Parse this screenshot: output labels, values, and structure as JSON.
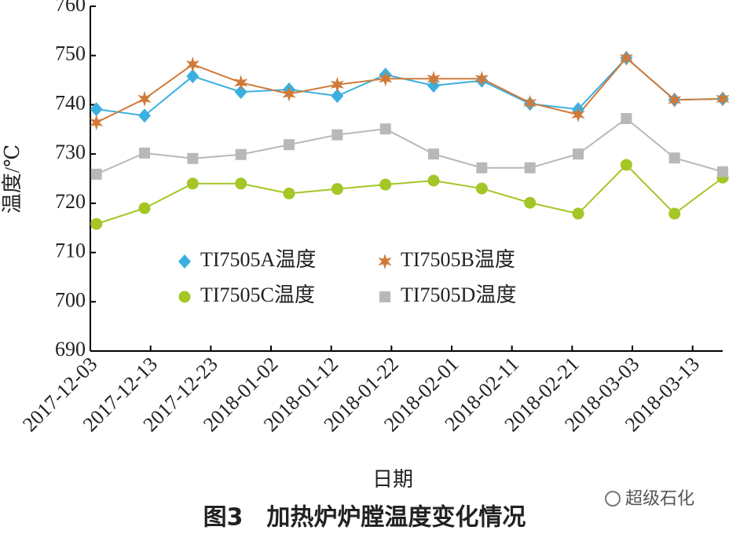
{
  "chart_data": {
    "type": "line",
    "x_label": "日期",
    "y_label": "温度/℃",
    "caption": "图3　加热炉炉膛温度变化情况",
    "watermark": "超级石化",
    "x": [
      "2017-12-04",
      "2017-12-12",
      "2017-12-20",
      "2017-12-28",
      "2018-01-05",
      "2018-01-13",
      "2018-01-21",
      "2018-01-29",
      "2018-02-06",
      "2018-02-14",
      "2018-02-22",
      "2018-03-02",
      "2018-03-10",
      "2018-03-18"
    ],
    "xlim": [
      "2017-12-03",
      "2018-03-18"
    ],
    "xticks": [
      "2017-12-03",
      "2017-12-13",
      "2017-12-23",
      "2018-01-02",
      "2018-01-12",
      "2018-01-22",
      "2018-02-01",
      "2018-02-11",
      "2018-02-21",
      "2018-03-03",
      "2018-03-13"
    ],
    "ylim": [
      690,
      760
    ],
    "yticks": [
      690,
      700,
      710,
      720,
      730,
      740,
      750,
      760
    ],
    "series": [
      {
        "name": "TI7505A温度",
        "color": "#3bb0e0",
        "marker": "diamond",
        "values": [
          739.1,
          737.8,
          745.8,
          742.6,
          743.1,
          741.8,
          746.1,
          743.9,
          744.9,
          740.2,
          739.1,
          749.5,
          741,
          741.2
        ]
      },
      {
        "name": "TI7505B温度",
        "color": "#d07a3a",
        "marker": "star",
        "values": [
          736.4,
          741.2,
          748.2,
          744.5,
          742.2,
          744.1,
          745.3,
          745.3,
          745.3,
          740.4,
          738,
          749.5,
          741,
          741.2
        ]
      },
      {
        "name": "TI7505C温度",
        "color": "#a4c626",
        "marker": "circle",
        "values": [
          715.8,
          719,
          724,
          724,
          722,
          722.9,
          723.8,
          724.6,
          723,
          720.1,
          717.9,
          727.8,
          717.9,
          725.2
        ]
      },
      {
        "name": "TI7505D温度",
        "color": "#b8b8b8",
        "marker": "square",
        "values": [
          725.9,
          730.2,
          729.1,
          729.9,
          731.9,
          733.9,
          735.1,
          730,
          727.2,
          727.2,
          730,
          737.2,
          729.2,
          726.4
        ]
      }
    ]
  }
}
